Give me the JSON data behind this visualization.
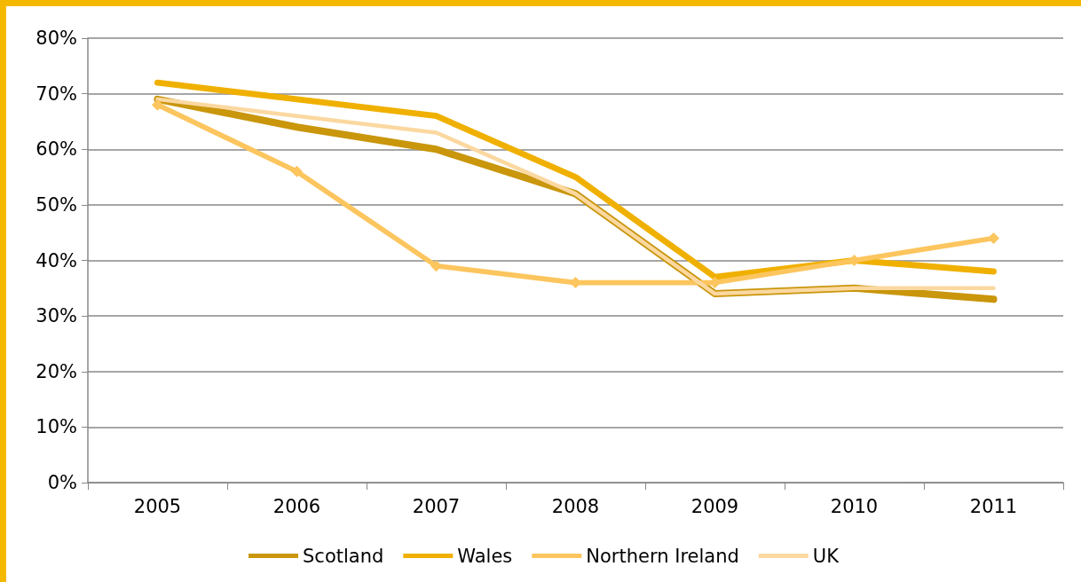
{
  "chart_data": {
    "type": "line",
    "categories": [
      "2005",
      "2006",
      "2007",
      "2008",
      "2009",
      "2010",
      "2011"
    ],
    "series": [
      {
        "name": "Scotland",
        "color": "#c9960c",
        "marker": "none",
        "values": [
          69,
          64,
          60,
          52,
          34,
          35,
          33
        ]
      },
      {
        "name": "Wales",
        "color": "#f0b000",
        "marker": "none",
        "values": [
          72,
          69,
          66,
          55,
          37,
          40,
          38
        ]
      },
      {
        "name": "Northern Ireland",
        "color": "#fcc55e",
        "marker": "diamond",
        "values": [
          68,
          56,
          39,
          36,
          36,
          40,
          44
        ]
      },
      {
        "name": "UK",
        "color": "#fbd8a0",
        "marker": "none",
        "values": [
          69,
          66,
          63,
          52,
          34,
          35,
          35
        ]
      }
    ],
    "ylim": [
      0,
      80
    ],
    "yticks": [
      {
        "value": 0,
        "label": "0%"
      },
      {
        "value": 10,
        "label": "10%"
      },
      {
        "value": 20,
        "label": "20%"
      },
      {
        "value": 30,
        "label": "30%"
      },
      {
        "value": 40,
        "label": "40%"
      },
      {
        "value": 50,
        "label": "50%"
      },
      {
        "value": 60,
        "label": "60%"
      },
      {
        "value": 70,
        "label": "70%"
      },
      {
        "value": 80,
        "label": "80%"
      }
    ],
    "grid": "y",
    "legend": "bottom",
    "line_style": "solid"
  }
}
